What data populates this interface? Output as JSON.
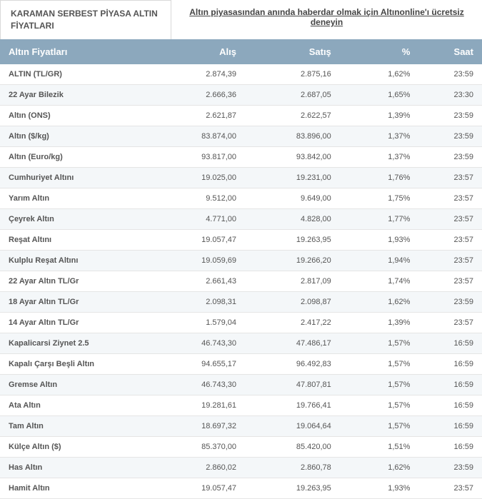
{
  "tab_title": "KARAMAN SERBEST PİYASA ALTIN FİYATLARI",
  "top_link": "Altın piyasasından anında haberdar olmak için Altınonline'ı ücretsiz deneyin",
  "headers": {
    "name": "Altın Fiyatları",
    "buy": "Alış",
    "sell": "Satış",
    "pct": "%",
    "time": "Saat"
  },
  "rows": [
    {
      "name": "ALTIN (TL/GR)",
      "buy": "2.874,39",
      "sell": "2.875,16",
      "pct": "1,62%",
      "time": "23:59"
    },
    {
      "name": "22 Ayar Bilezik",
      "buy": "2.666,36",
      "sell": "2.687,05",
      "pct": "1,65%",
      "time": "23:30"
    },
    {
      "name": "Altın (ONS)",
      "buy": "2.621,87",
      "sell": "2.622,57",
      "pct": "1,39%",
      "time": "23:59"
    },
    {
      "name": "Altın ($/kg)",
      "buy": "83.874,00",
      "sell": "83.896,00",
      "pct": "1,37%",
      "time": "23:59"
    },
    {
      "name": "Altın (Euro/kg)",
      "buy": "93.817,00",
      "sell": "93.842,00",
      "pct": "1,37%",
      "time": "23:59"
    },
    {
      "name": "Cumhuriyet Altını",
      "buy": "19.025,00",
      "sell": "19.231,00",
      "pct": "1,76%",
      "time": "23:57"
    },
    {
      "name": "Yarım Altın",
      "buy": "9.512,00",
      "sell": "9.649,00",
      "pct": "1,75%",
      "time": "23:57"
    },
    {
      "name": "Çeyrek Altın",
      "buy": "4.771,00",
      "sell": "4.828,00",
      "pct": "1,77%",
      "time": "23:57"
    },
    {
      "name": "Reşat Altını",
      "buy": "19.057,47",
      "sell": "19.263,95",
      "pct": "1,93%",
      "time": "23:57"
    },
    {
      "name": "Kulplu Reşat Altını",
      "buy": "19.059,69",
      "sell": "19.266,20",
      "pct": "1,94%",
      "time": "23:57"
    },
    {
      "name": "22 Ayar Altın TL/Gr",
      "buy": "2.661,43",
      "sell": "2.817,09",
      "pct": "1,74%",
      "time": "23:57"
    },
    {
      "name": "18 Ayar Altın TL/Gr",
      "buy": "2.098,31",
      "sell": "2.098,87",
      "pct": "1,62%",
      "time": "23:59"
    },
    {
      "name": "14 Ayar Altın TL/Gr",
      "buy": "1.579,04",
      "sell": "2.417,22",
      "pct": "1,39%",
      "time": "23:57"
    },
    {
      "name": "Kapalicarsi Ziynet 2.5",
      "buy": "46.743,30",
      "sell": "47.486,17",
      "pct": "1,57%",
      "time": "16:59"
    },
    {
      "name": "Kapalı Çarşı Beşli Altın",
      "buy": "94.655,17",
      "sell": "96.492,83",
      "pct": "1,57%",
      "time": "16:59"
    },
    {
      "name": "Gremse Altın",
      "buy": "46.743,30",
      "sell": "47.807,81",
      "pct": "1,57%",
      "time": "16:59"
    },
    {
      "name": "Ata Altın",
      "buy": "19.281,61",
      "sell": "19.766,41",
      "pct": "1,57%",
      "time": "16:59"
    },
    {
      "name": "Tam Altın",
      "buy": "18.697,32",
      "sell": "19.064,64",
      "pct": "1,57%",
      "time": "16:59"
    },
    {
      "name": "Külçe Altın ($)",
      "buy": "85.370,00",
      "sell": "85.420,00",
      "pct": "1,51%",
      "time": "16:59"
    },
    {
      "name": "Has Altın",
      "buy": "2.860,02",
      "sell": "2.860,78",
      "pct": "1,62%",
      "time": "23:59"
    },
    {
      "name": "Hamit Altın",
      "buy": "19.057,47",
      "sell": "19.263,95",
      "pct": "1,93%",
      "time": "23:57"
    }
  ]
}
